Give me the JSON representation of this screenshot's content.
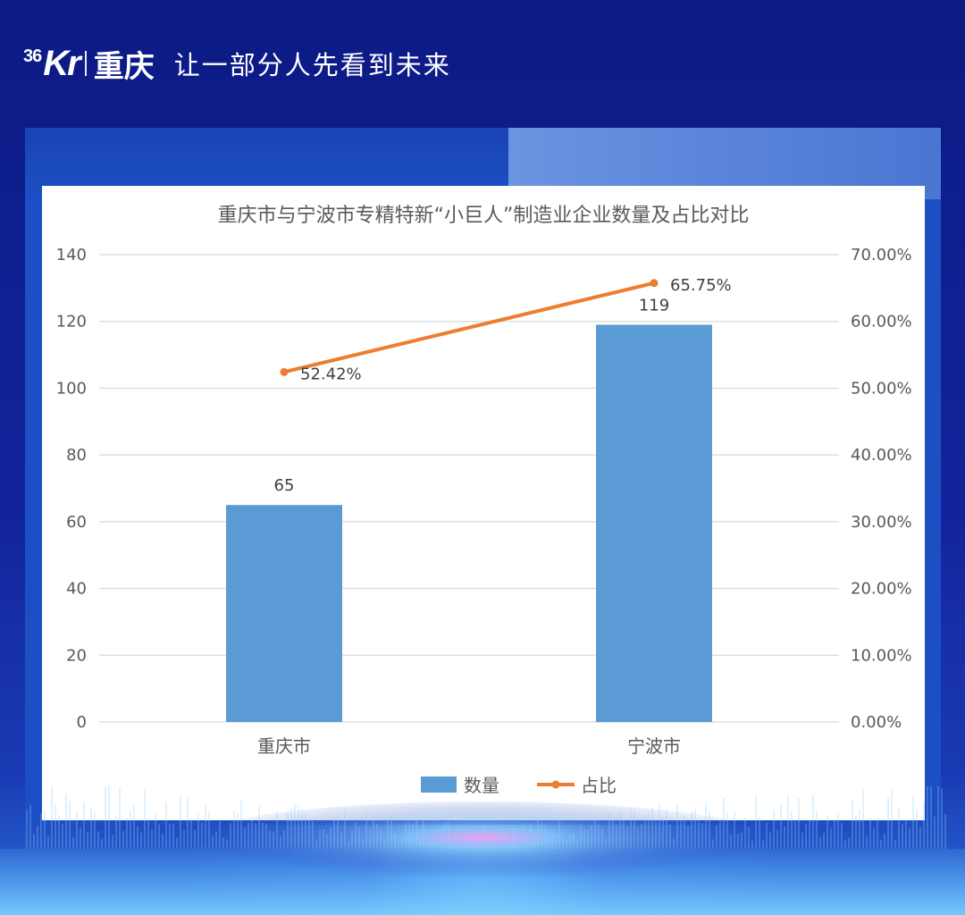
{
  "header": {
    "logo_36": "36",
    "logo_kr": "Kr",
    "logo_city": "重庆",
    "slogan": "让一部分人先看到未来"
  },
  "chart_data": {
    "type": "bar",
    "title": "重庆市与宁波市专精特新“小巨人”制造业企业数量及占比对比",
    "categories": [
      "重庆市",
      "宁波市"
    ],
    "series": [
      {
        "name": "数量",
        "type": "bar",
        "axis": "left",
        "values": [
          65,
          119
        ],
        "labels": [
          "65",
          "119"
        ],
        "color": "#5b9bd5"
      },
      {
        "name": "占比",
        "type": "line",
        "axis": "right",
        "values": [
          52.42,
          65.75
        ],
        "labels": [
          "52.42%",
          "65.75%"
        ],
        "color": "#ed7d31"
      }
    ],
    "y_left": {
      "min": 0,
      "max": 140,
      "ticks": [
        "0",
        "20",
        "40",
        "60",
        "80",
        "100",
        "120",
        "140"
      ]
    },
    "y_right": {
      "min": 0,
      "max": 70,
      "ticks": [
        "0.00%",
        "10.00%",
        "20.00%",
        "30.00%",
        "40.00%",
        "50.00%",
        "60.00%",
        "70.00%"
      ]
    },
    "grid": true,
    "legend_position": "bottom"
  }
}
